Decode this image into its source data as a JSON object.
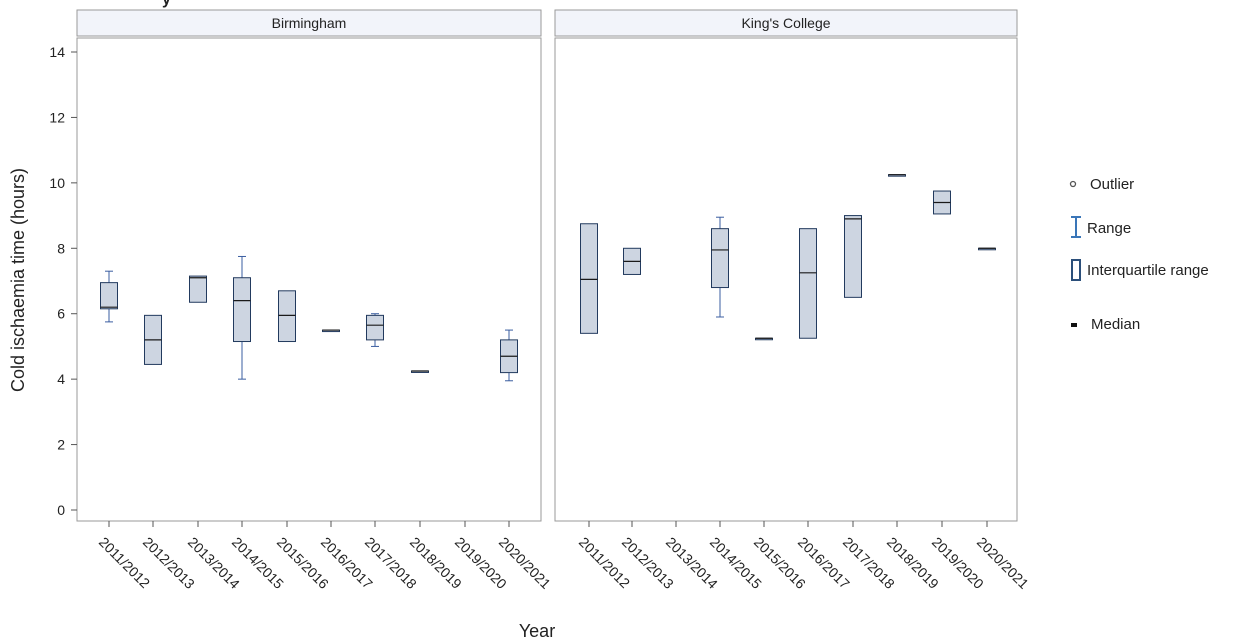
{
  "chart_data": {
    "type": "boxplot",
    "title_fragment": "y",
    "xlabel": "Year",
    "ylabel": "Cold ischaemia time (hours)",
    "ylim": [
      0,
      14
    ],
    "yticks": [
      0,
      2,
      4,
      6,
      8,
      10,
      12,
      14
    ],
    "categories": [
      "2011/2012",
      "2012/2013",
      "2013/2014",
      "2014/2015",
      "2015/2016",
      "2016/2017",
      "2017/2018",
      "2018/2019",
      "2019/2020",
      "2020/2021"
    ],
    "panels": [
      {
        "name": "Birmingham",
        "boxes": [
          {
            "category": "2011/2012",
            "min": 5.75,
            "q1": 6.15,
            "median": 6.2,
            "q3": 6.95,
            "max": 7.3
          },
          {
            "category": "2012/2013",
            "min": 4.45,
            "q1": 4.45,
            "median": 5.2,
            "q3": 5.95,
            "max": 5.95
          },
          {
            "category": "2013/2014",
            "min": 6.35,
            "q1": 6.35,
            "median": 7.1,
            "q3": 7.15,
            "max": 7.15
          },
          {
            "category": "2014/2015",
            "min": 4.0,
            "q1": 5.15,
            "median": 6.4,
            "q3": 7.1,
            "max": 7.75
          },
          {
            "category": "2015/2016",
            "min": 5.15,
            "q1": 5.15,
            "median": 5.95,
            "q3": 6.7,
            "max": 6.7
          },
          {
            "category": "2016/2017",
            "min": 5.5,
            "q1": 5.5,
            "median": 5.5,
            "q3": 5.5,
            "max": 5.5
          },
          {
            "category": "2017/2018",
            "min": 5.0,
            "q1": 5.2,
            "median": 5.65,
            "q3": 5.95,
            "max": 6.0
          },
          {
            "category": "2018/2019",
            "min": 4.25,
            "q1": 4.25,
            "median": 4.25,
            "q3": 4.25,
            "max": 4.25
          },
          {
            "category": "2020/2021",
            "min": 3.95,
            "q1": 4.2,
            "median": 4.7,
            "q3": 5.2,
            "max": 5.5
          }
        ]
      },
      {
        "name": "King's College",
        "boxes": [
          {
            "category": "2011/2012",
            "min": 5.4,
            "q1": 5.4,
            "median": 7.05,
            "q3": 8.75,
            "max": 8.75
          },
          {
            "category": "2012/2013",
            "min": 7.2,
            "q1": 7.2,
            "median": 7.6,
            "q3": 8.0,
            "max": 8.0
          },
          {
            "category": "2014/2015",
            "min": 5.9,
            "q1": 6.8,
            "median": 7.95,
            "q3": 8.6,
            "max": 8.95
          },
          {
            "category": "2015/2016",
            "min": 5.25,
            "q1": 5.25,
            "median": 5.25,
            "q3": 5.25,
            "max": 5.25
          },
          {
            "category": "2016/2017",
            "min": 5.25,
            "q1": 5.25,
            "median": 7.25,
            "q3": 8.6,
            "max": 8.6
          },
          {
            "category": "2017/2018",
            "min": 6.5,
            "q1": 6.5,
            "median": 8.9,
            "q3": 9.0,
            "max": 9.0
          },
          {
            "category": "2018/2019",
            "min": 10.25,
            "q1": 10.25,
            "median": 10.25,
            "q3": 10.25,
            "max": 10.25
          },
          {
            "category": "2019/2020",
            "min": 9.05,
            "q1": 9.05,
            "median": 9.4,
            "q3": 9.75,
            "max": 9.75
          },
          {
            "category": "2020/2021",
            "min": 8.0,
            "q1": 8.0,
            "median": 8.0,
            "q3": 8.0,
            "max": 8.0
          }
        ]
      }
    ],
    "legend": {
      "position": "right",
      "items": [
        {
          "key": "outlier",
          "label": "Outlier",
          "icon": "circle-icon"
        },
        {
          "key": "range",
          "label": "Range",
          "icon": "range-bar-icon"
        },
        {
          "key": "iqr",
          "label": "Interquartile range",
          "icon": "box-icon"
        },
        {
          "key": "median",
          "label": "Median",
          "icon": "dash-icon"
        }
      ]
    },
    "colors": {
      "box_fill": "#cdd5e1",
      "box_stroke": "#223a5e",
      "median": "#1a1a1a",
      "whisker": "#3a5da0",
      "header_bg": "#f2f4fa",
      "frame": "#9a9a9a",
      "legend_outlier": "#555555",
      "legend_range": "#3a76b8",
      "legend_iqr": "#2b4f7a"
    },
    "grid": false
  }
}
